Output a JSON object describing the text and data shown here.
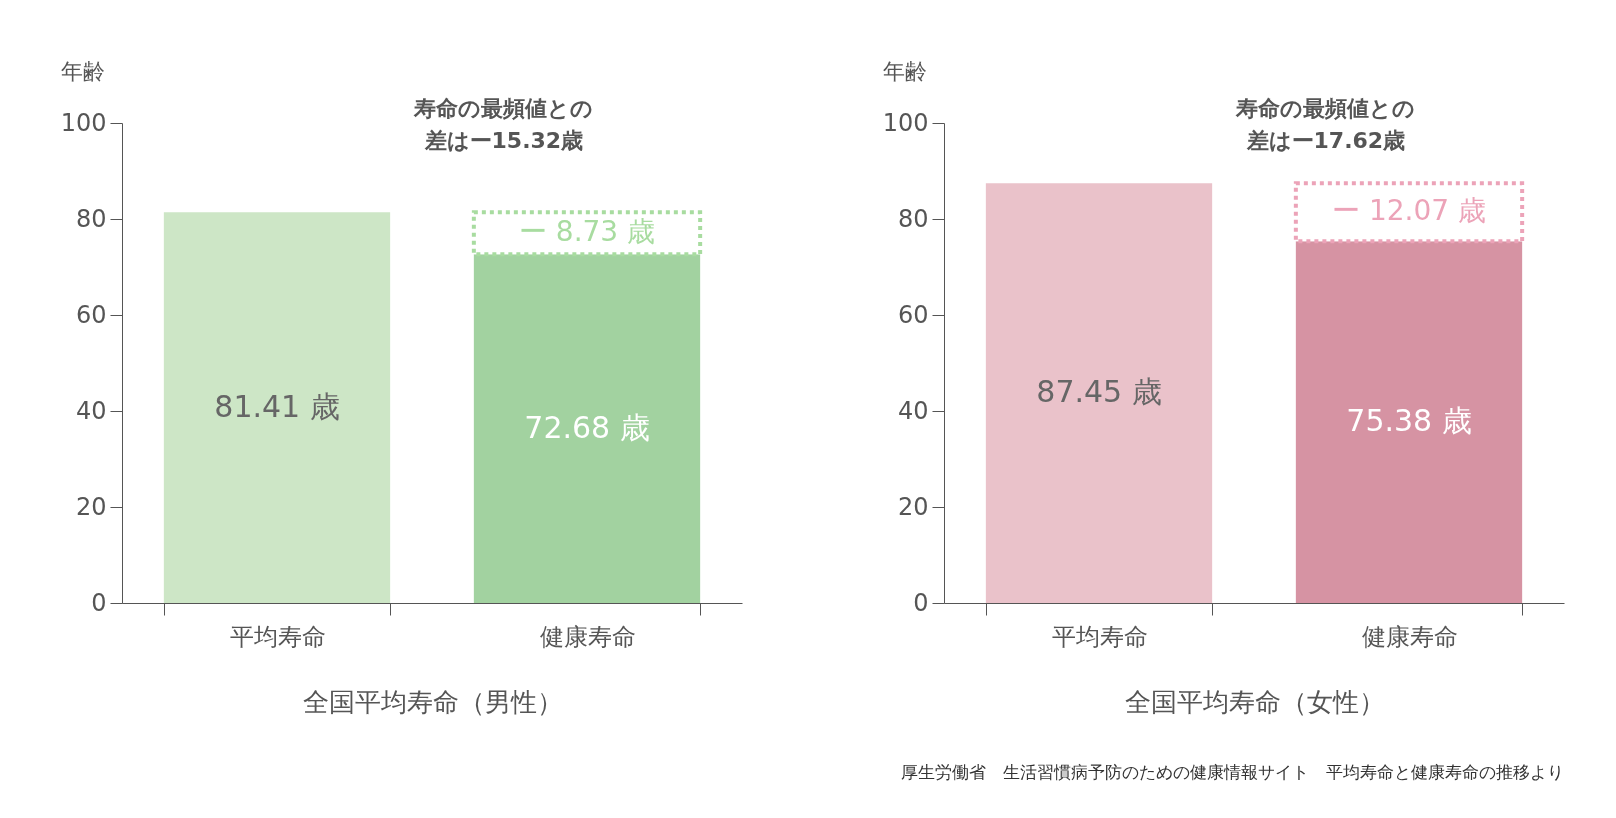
{
  "chart_data": [
    {
      "type": "bar",
      "ylabel": "年齢",
      "xlabel": "全国平均寿命（男性）",
      "categories": [
        "平均寿命",
        "健康寿命"
      ],
      "ylim": [
        0,
        100
      ],
      "yticks": [
        0,
        20,
        40,
        60,
        80,
        100
      ],
      "stacked": true,
      "series": [
        {
          "colors": [
            "#cde6c6",
            "#a2d2a0"
          ],
          "values": [
            81.41,
            72.68
          ],
          "value_labels": [
            "81.41 歳",
            "72.68 歳"
          ]
        },
        {
          "color": "#a8dca0",
          "line_style": "dotted",
          "values": [
            null,
            8.73
          ],
          "value_labels": [
            null,
            "ー 8.73 歳"
          ]
        }
      ],
      "annotations": [
        "寿命の最頻値との差はー15.32歳"
      ]
    },
    {
      "type": "bar",
      "ylabel": "年齢",
      "xlabel": "全国平均寿命（女性）",
      "categories": [
        "平均寿命",
        "健康寿命"
      ],
      "ylim": [
        0,
        100
      ],
      "yticks": [
        0,
        20,
        40,
        60,
        80,
        100
      ],
      "stacked": true,
      "series": [
        {
          "colors": [
            "#eac2ca",
            "#d693a3"
          ],
          "values": [
            87.45,
            75.38
          ],
          "value_labels": [
            "87.45 歳",
            "75.38 歳"
          ]
        },
        {
          "color": "#eca3b8",
          "line_style": "dotted",
          "values": [
            null,
            12.07
          ],
          "value_labels": [
            null,
            "ー 12.07 歳"
          ]
        }
      ],
      "annotations": [
        "寿命の最頻値との差はー17.62歳",
        "厚生労働省　生活習慣病予防のための健康情報サイト　平均寿命と健康寿命の推移より"
      ]
    }
  ]
}
